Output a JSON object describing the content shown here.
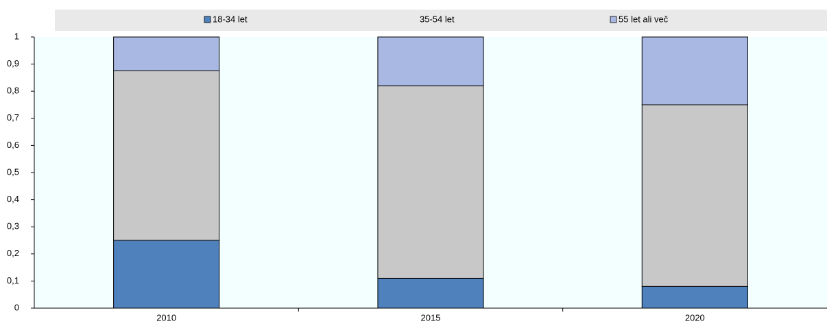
{
  "chart_data": {
    "type": "stacked_bar",
    "categories": [
      "2010",
      "2015",
      "2020"
    ],
    "series": [
      {
        "name": "18-34 let",
        "color": "#4f81bd",
        "values": [
          0.25,
          0.11,
          0.08
        ]
      },
      {
        "name": "35-54 let",
        "color": "#c8c8c8",
        "values": [
          0.625,
          0.71,
          0.67
        ]
      },
      {
        "name": "55 let ali več",
        "color": "#a8b8e2",
        "values": [
          0.125,
          0.18,
          0.25
        ]
      }
    ],
    "ylim": [
      0,
      1
    ],
    "yticks": [
      0,
      {
        "value": 0.1,
        "label": "0,1"
      },
      {
        "value": 0.2,
        "label": "0,2"
      },
      {
        "value": 0.3,
        "label": "0,3"
      },
      {
        "value": 0.4,
        "label": "0,4"
      },
      {
        "value": 0.5,
        "label": "0,5"
      },
      {
        "value": 0.6,
        "label": "0,6"
      },
      {
        "value": 0.7,
        "label": "0,7"
      },
      {
        "value": 0.8,
        "label": "0,8"
      },
      {
        "value": 0.9,
        "label": "0,9"
      },
      1
    ],
    "legend": "top"
  }
}
